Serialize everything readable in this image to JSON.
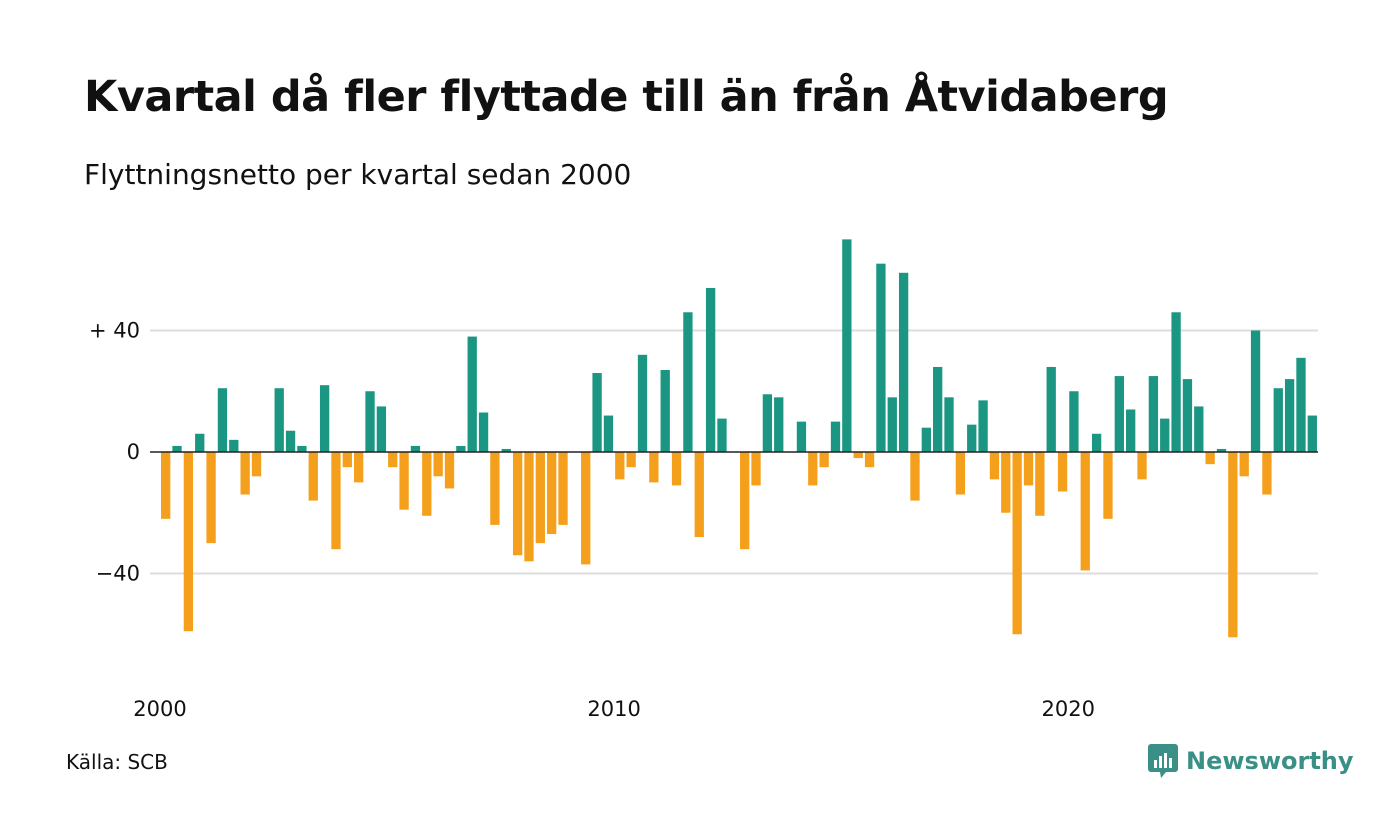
{
  "title": "Kvartal då fler flyttade till än från Åtvidaberg",
  "subtitle": "Flyttningsnetto per kvartal sedan 2000",
  "source": "Källa: SCB",
  "brand": "Newsworthy",
  "colors": {
    "positive": "#1a9682",
    "negative": "#f5a01c",
    "grid": "#dddddd",
    "brand": "#3a8f86"
  },
  "chart_data": {
    "type": "bar",
    "title": "Kvartal då fler flyttade till än från Åtvidaberg",
    "subtitle": "Flyttningsnetto per kvartal sedan 2000",
    "x_start": "2000 Q1",
    "x_ticks": [
      "2000",
      "2010",
      "2020"
    ],
    "y_ticks": [
      {
        "value": 40,
        "label": "+ 40"
      },
      {
        "value": 0,
        "label": "0"
      },
      {
        "value": -40,
        "label": "−40"
      }
    ],
    "ylim": [
      -70,
      72
    ],
    "grid": true,
    "legend": "none",
    "values": [
      -22,
      2,
      -59,
      6,
      -30,
      21,
      4,
      -14,
      -8,
      0,
      21,
      7,
      2,
      -16,
      22,
      -32,
      -5,
      -10,
      20,
      15,
      -5,
      -19,
      2,
      -21,
      -8,
      -12,
      2,
      38,
      13,
      -24,
      1,
      -34,
      -36,
      -30,
      -27,
      -24,
      0,
      -37,
      26,
      12,
      -9,
      -5,
      32,
      -10,
      27,
      -11,
      46,
      -28,
      54,
      11,
      0,
      -32,
      -11,
      19,
      18,
      0,
      10,
      -11,
      -5,
      10,
      70,
      -2,
      -5,
      62,
      18,
      59,
      -16,
      8,
      28,
      18,
      -14,
      9,
      17,
      -9,
      -20,
      -60,
      -11,
      -21,
      28,
      -13,
      20,
      -39,
      6,
      -22,
      25,
      14,
      -9,
      25,
      11,
      46,
      24,
      15,
      -4,
      1,
      -61,
      -8,
      40,
      -14,
      21,
      24,
      31,
      12
    ]
  }
}
